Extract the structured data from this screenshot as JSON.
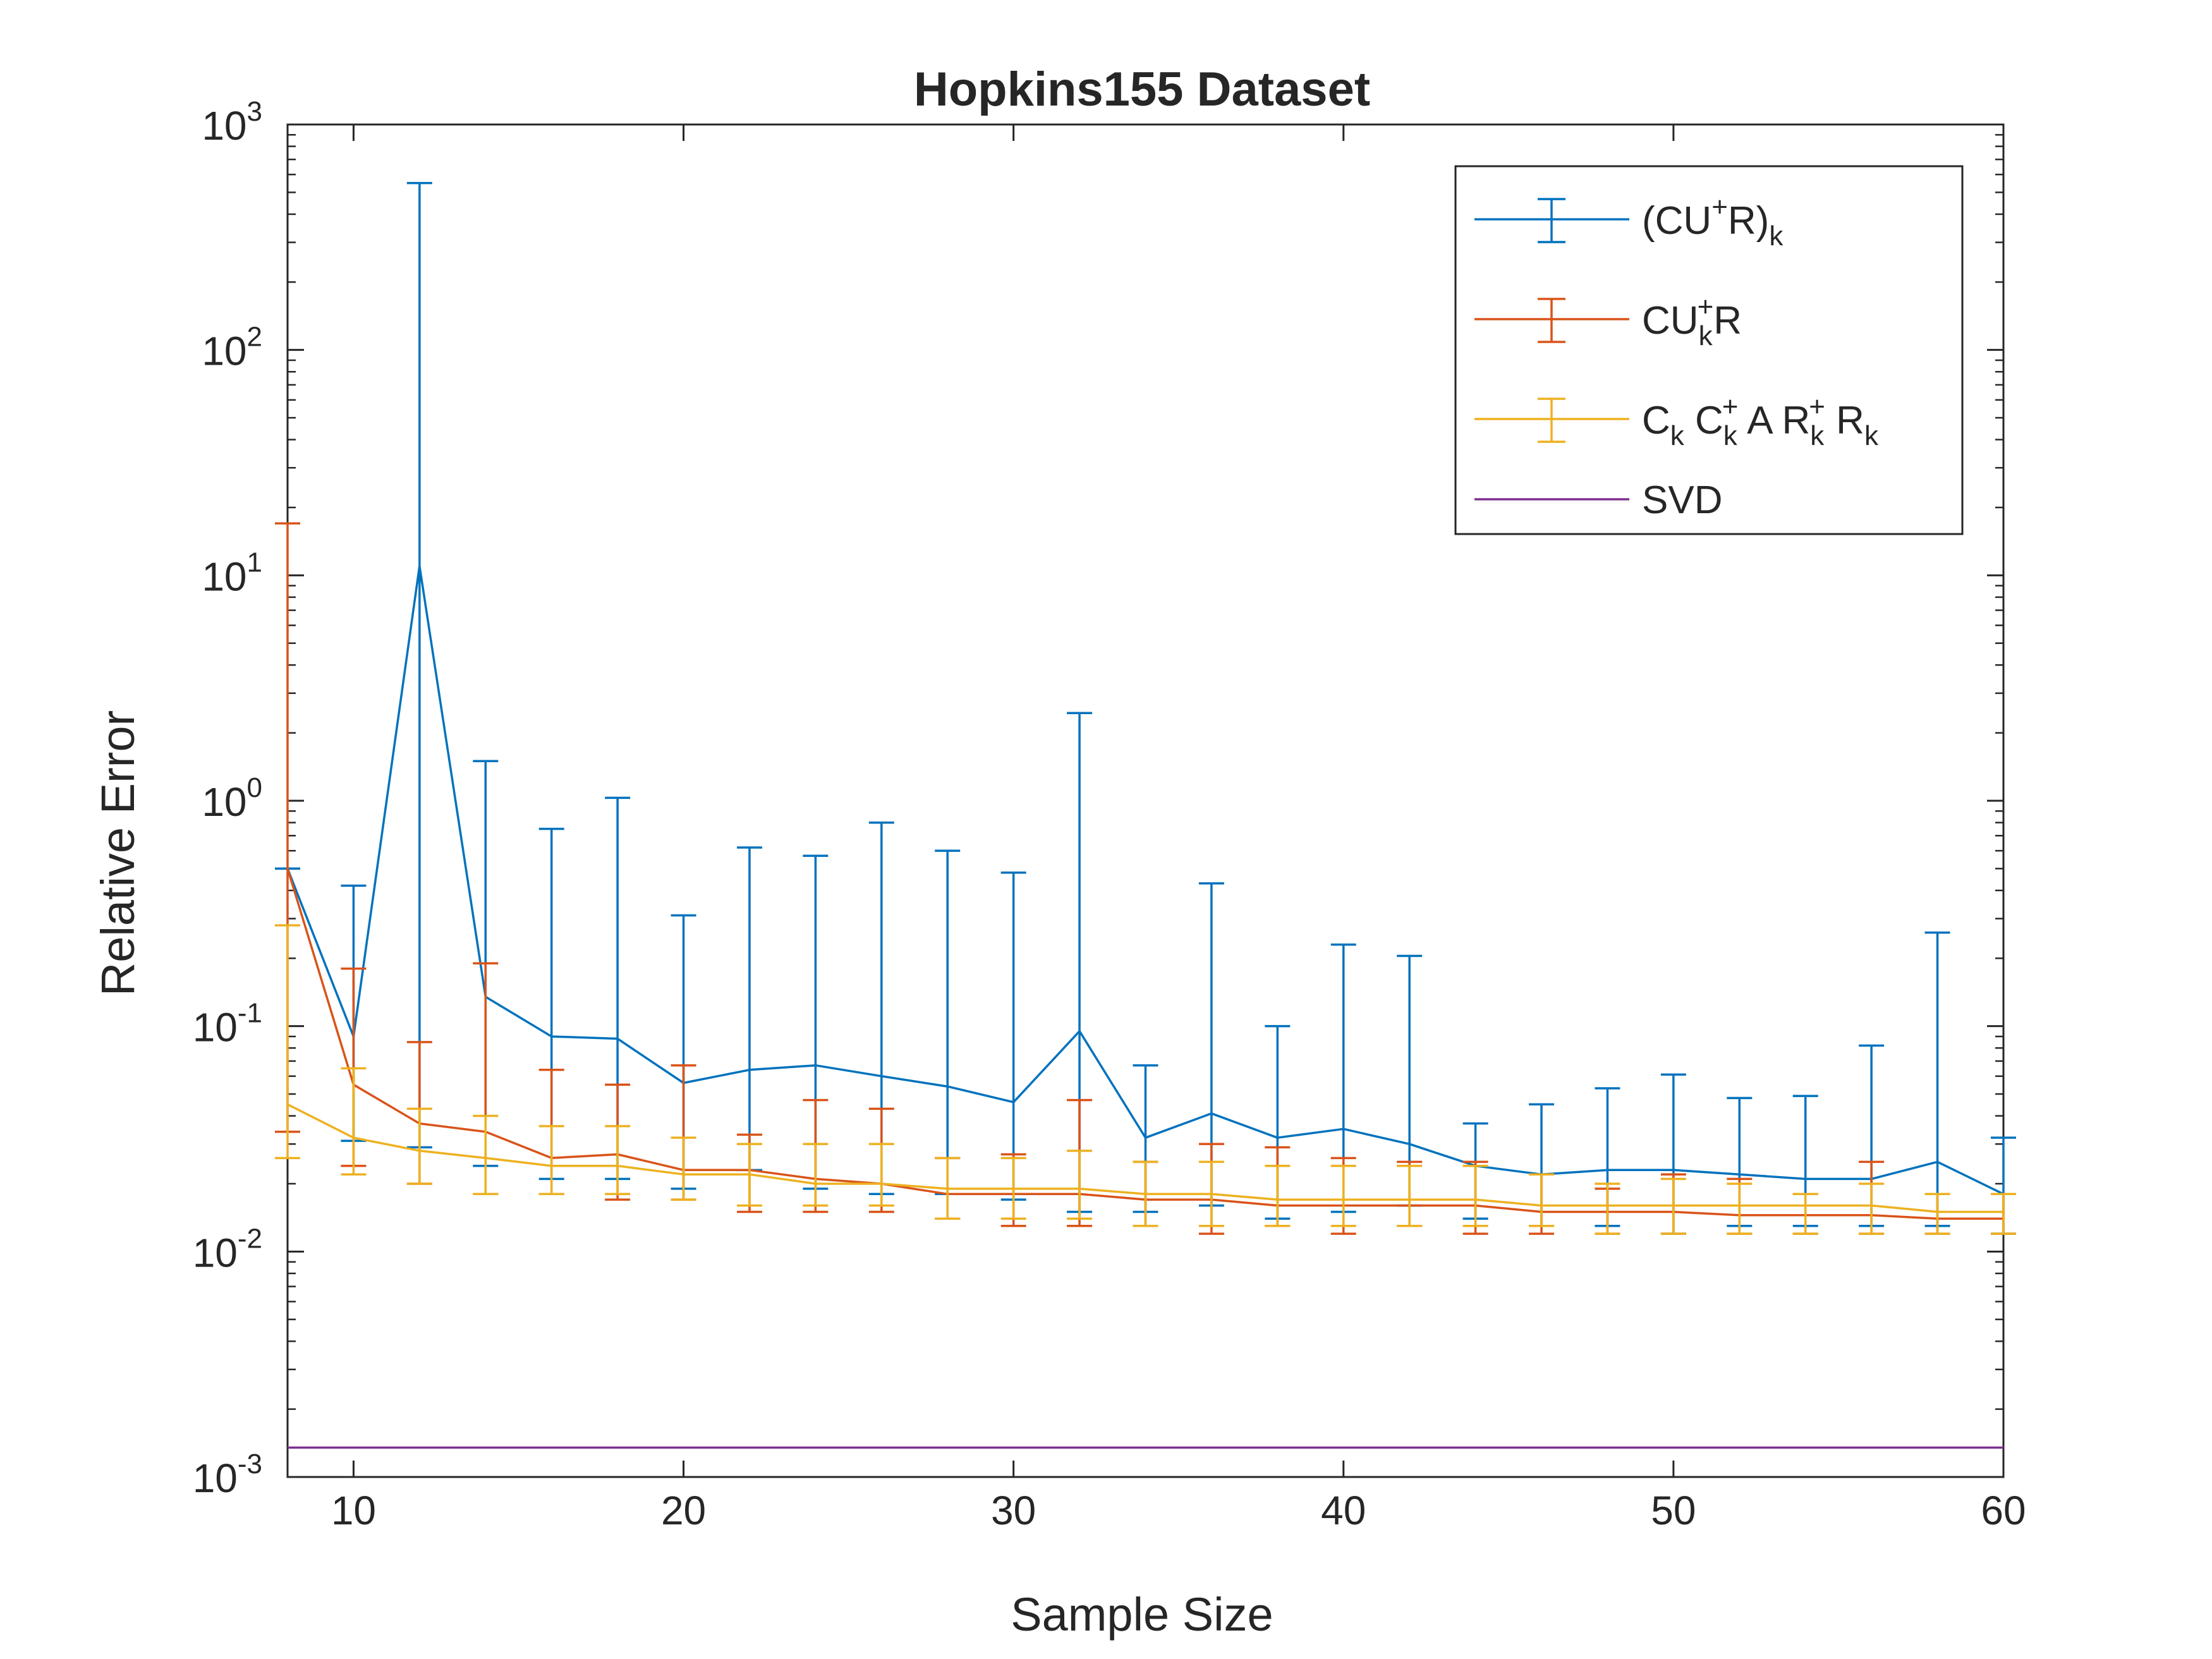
{
  "chart_data": {
    "type": "line",
    "title": "Hopkins155 Dataset",
    "xlabel": "Sample Size",
    "ylabel": "Relative Error",
    "xlim": [
      8,
      60
    ],
    "ylim": [
      0.001,
      1000
    ],
    "yscale": "log",
    "grid": false,
    "legend_position": "top-right",
    "x": [
      8,
      10,
      12,
      14,
      16,
      18,
      20,
      22,
      24,
      26,
      28,
      30,
      32,
      34,
      36,
      38,
      40,
      42,
      44,
      46,
      48,
      50,
      52,
      54,
      56,
      58,
      60
    ],
    "x_ticks": [
      "10",
      "20",
      "30",
      "40",
      "50",
      "60"
    ],
    "y_ticks": [
      {
        "base": "10",
        "exp": "-3"
      },
      {
        "base": "10",
        "exp": "-2"
      },
      {
        "base": "10",
        "exp": "-1"
      },
      {
        "base": "10",
        "exp": "0"
      },
      {
        "base": "10",
        "exp": "1"
      },
      {
        "base": "10",
        "exp": "2"
      },
      {
        "base": "10",
        "exp": "3"
      }
    ],
    "series": [
      {
        "name": "(CU+R)k",
        "color": "#0072BD",
        "errorbars": true,
        "values": [
          0.5,
          0.09,
          11,
          0.135,
          0.09,
          0.088,
          0.056,
          0.064,
          0.067,
          0.06,
          0.054,
          0.046,
          0.095,
          0.032,
          0.041,
          0.032,
          0.035,
          0.03,
          0.024,
          0.022,
          0.023,
          0.023,
          0.022,
          0.021,
          0.021,
          0.025,
          0.018
        ],
        "upper": [
          0.5,
          0.42,
          550,
          1.5,
          0.75,
          1.03,
          0.31,
          0.62,
          0.57,
          0.8,
          0.6,
          0.48,
          2.45,
          0.067,
          0.43,
          0.1,
          0.23,
          0.205,
          0.037,
          0.045,
          0.053,
          0.061,
          0.048,
          0.049,
          0.082,
          0.26,
          0.032
        ],
        "lower": [
          0.5,
          0.031,
          0.029,
          0.024,
          0.021,
          0.021,
          0.019,
          0.023,
          0.019,
          0.018,
          0.018,
          0.017,
          0.015,
          0.015,
          0.016,
          0.014,
          0.015,
          0.016,
          0.014,
          0.013,
          0.013,
          0.012,
          0.013,
          0.013,
          0.013,
          0.013,
          0.012
        ]
      },
      {
        "name": "CUk+R",
        "color": "#D95319",
        "errorbars": true,
        "values": [
          0.5,
          0.055,
          0.037,
          0.034,
          0.026,
          0.027,
          0.023,
          0.023,
          0.021,
          0.02,
          0.018,
          0.018,
          0.018,
          0.017,
          0.017,
          0.016,
          0.016,
          0.016,
          0.016,
          0.015,
          0.015,
          0.015,
          0.0145,
          0.0145,
          0.0145,
          0.014,
          0.014
        ],
        "upper": [
          17,
          0.18,
          0.085,
          0.19,
          0.064,
          0.055,
          0.067,
          0.033,
          0.047,
          0.043,
          0.026,
          0.027,
          0.047,
          0.025,
          0.03,
          0.029,
          0.026,
          0.025,
          0.025,
          0.022,
          0.019,
          0.022,
          0.021,
          0.018,
          0.025,
          0.018,
          0.018
        ],
        "lower": [
          0.034,
          0.024,
          0.02,
          0.018,
          0.018,
          0.017,
          0.017,
          0.015,
          0.015,
          0.015,
          0.014,
          0.013,
          0.013,
          0.013,
          0.012,
          0.013,
          0.012,
          0.013,
          0.012,
          0.012,
          0.012,
          0.012,
          0.012,
          0.012,
          0.012,
          0.012,
          0.012
        ]
      },
      {
        "name": "Ck Ck+ A Rk+ Rk",
        "color": "#EDB120",
        "errorbars": true,
        "values": [
          0.045,
          0.032,
          0.028,
          0.026,
          0.024,
          0.024,
          0.022,
          0.022,
          0.02,
          0.02,
          0.019,
          0.019,
          0.019,
          0.018,
          0.018,
          0.017,
          0.017,
          0.017,
          0.017,
          0.016,
          0.016,
          0.016,
          0.016,
          0.016,
          0.016,
          0.015,
          0.015
        ],
        "upper": [
          0.28,
          0.065,
          0.043,
          0.04,
          0.036,
          0.036,
          0.032,
          0.03,
          0.03,
          0.03,
          0.026,
          0.026,
          0.028,
          0.025,
          0.025,
          0.024,
          0.024,
          0.024,
          0.024,
          0.022,
          0.02,
          0.021,
          0.02,
          0.018,
          0.02,
          0.018,
          0.018
        ],
        "lower": [
          0.026,
          0.022,
          0.02,
          0.018,
          0.018,
          0.018,
          0.017,
          0.016,
          0.016,
          0.016,
          0.014,
          0.014,
          0.014,
          0.013,
          0.013,
          0.013,
          0.013,
          0.013,
          0.013,
          0.013,
          0.012,
          0.012,
          0.012,
          0.012,
          0.012,
          0.012,
          0.012
        ]
      },
      {
        "name": "SVD",
        "color": "#7E2F8E",
        "errorbars": false,
        "values": [
          0.00135,
          0.00135,
          0.00135,
          0.00135,
          0.00135,
          0.00135,
          0.00135,
          0.00135,
          0.00135,
          0.00135,
          0.00135,
          0.00135,
          0.00135,
          0.00135,
          0.00135,
          0.00135,
          0.00135,
          0.00135,
          0.00135,
          0.00135,
          0.00135,
          0.00135,
          0.00135,
          0.00135,
          0.00135,
          0.00135,
          0.00135
        ]
      }
    ]
  },
  "legend": {
    "entry1": {
      "open": "(CU",
      "sup": "+",
      "close": "R)",
      "sub": "k"
    },
    "entry2": {
      "main": "CU",
      "sub": "k",
      "sup": "+",
      "tail": "R"
    },
    "entry3": {
      "c": "C",
      "c_sub": "k",
      "c2": " C",
      "c2_sub": "k",
      "c2_sup": "+",
      "a": " A R",
      "r_sub": "k",
      "r_sup": "+",
      "r2": " R",
      "r2_sub": "k"
    },
    "entry4": {
      "label": "SVD"
    }
  }
}
